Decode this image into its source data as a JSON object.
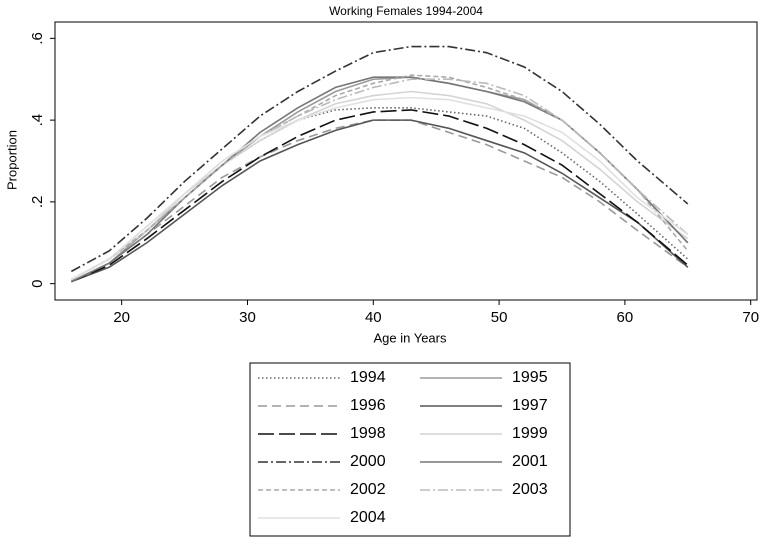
{
  "chart_data": {
    "type": "line",
    "title": "Working Females 1994-2004",
    "x_label": "Age in Years",
    "y_label": "Proportion",
    "x": [
      16,
      19,
      22,
      25,
      28,
      31,
      34,
      37,
      40,
      43,
      46,
      49,
      52,
      55,
      58,
      61,
      65
    ],
    "xlim": [
      14.7,
      70.5
    ],
    "xticks": [
      20,
      30,
      40,
      50,
      60,
      70
    ],
    "ylim": [
      -0.04,
      0.64
    ],
    "yticks": [
      0,
      {
        "value": 0.2,
        "label": ".2"
      },
      {
        "value": 0.4,
        "label": ".4"
      },
      {
        "value": 0.6,
        "label": ".6"
      }
    ],
    "series": [
      {
        "name": "1994",
        "color": "#666666",
        "dash": "dot",
        "values": [
          0.01,
          0.06,
          0.13,
          0.21,
          0.29,
          0.35,
          0.4,
          0.425,
          0.43,
          0.43,
          0.42,
          0.41,
          0.38,
          0.32,
          0.25,
          0.17,
          0.06
        ]
      },
      {
        "name": "1995",
        "color": "#9a9a9a",
        "dash": "solid",
        "values": [
          0.005,
          0.05,
          0.13,
          0.21,
          0.29,
          0.36,
          0.42,
          0.47,
          0.5,
          0.505,
          0.49,
          0.47,
          0.45,
          0.4,
          0.32,
          0.23,
          0.1
        ]
      },
      {
        "name": "1996",
        "color": "#999999",
        "dash": "dash",
        "values": [
          0.005,
          0.05,
          0.12,
          0.19,
          0.26,
          0.31,
          0.35,
          0.38,
          0.4,
          0.4,
          0.37,
          0.34,
          0.3,
          0.26,
          0.2,
          0.13,
          0.04
        ]
      },
      {
        "name": "1997",
        "color": "#555555",
        "dash": "solid",
        "values": [
          0.005,
          0.04,
          0.1,
          0.17,
          0.24,
          0.3,
          0.34,
          0.375,
          0.4,
          0.4,
          0.38,
          0.35,
          0.32,
          0.27,
          0.21,
          0.15,
          0.04
        ]
      },
      {
        "name": "1998",
        "color": "#111111",
        "dash": "longdash",
        "values": [
          0.005,
          0.045,
          0.11,
          0.18,
          0.25,
          0.31,
          0.36,
          0.4,
          0.42,
          0.425,
          0.41,
          0.38,
          0.34,
          0.29,
          0.22,
          0.15,
          0.045
        ]
      },
      {
        "name": "1999",
        "color": "#d4d4d4",
        "dash": "solid",
        "values": [
          0.01,
          0.06,
          0.13,
          0.22,
          0.29,
          0.35,
          0.4,
          0.44,
          0.46,
          0.47,
          0.46,
          0.44,
          0.4,
          0.35,
          0.28,
          0.2,
          0.11
        ]
      },
      {
        "name": "2000",
        "color": "#333333",
        "dash": "dashdot",
        "values": [
          0.03,
          0.08,
          0.16,
          0.25,
          0.33,
          0.41,
          0.47,
          0.52,
          0.565,
          0.58,
          0.58,
          0.565,
          0.53,
          0.47,
          0.39,
          0.3,
          0.195
        ]
      },
      {
        "name": "2001",
        "color": "#777777",
        "dash": "solid",
        "values": [
          0.005,
          0.05,
          0.12,
          0.21,
          0.29,
          0.37,
          0.43,
          0.48,
          0.505,
          0.505,
          0.49,
          0.47,
          0.445,
          0.4,
          0.32,
          0.23,
          0.1
        ]
      },
      {
        "name": "2002",
        "color": "#aaaaaa",
        "dash": "shortdash",
        "values": [
          0.01,
          0.06,
          0.13,
          0.21,
          0.29,
          0.36,
          0.41,
          0.46,
          0.49,
          0.51,
          0.505,
          0.48,
          0.45,
          0.4,
          0.32,
          0.23,
          0.08
        ]
      },
      {
        "name": "2003",
        "color": "#bbbbbb",
        "dash": "dashdot",
        "values": [
          0.01,
          0.06,
          0.14,
          0.22,
          0.3,
          0.36,
          0.41,
          0.45,
          0.48,
          0.5,
          0.5,
          0.49,
          0.46,
          0.4,
          0.32,
          0.23,
          0.12
        ]
      },
      {
        "name": "2004",
        "color": "#e0e0e0",
        "dash": "solid",
        "values": [
          0.01,
          0.06,
          0.14,
          0.22,
          0.3,
          0.36,
          0.4,
          0.43,
          0.45,
          0.455,
          0.45,
          0.43,
          0.41,
          0.37,
          0.3,
          0.21,
          0.12
        ]
      }
    ]
  }
}
